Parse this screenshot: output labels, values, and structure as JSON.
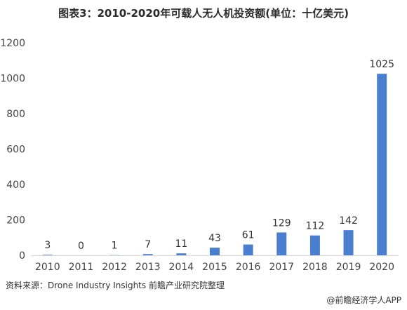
{
  "title": "图表3：2010-2020年可载人无人机投资额(单位：十亿美元)",
  "source_note": "资料来源：Drone Industry Insights 前瞻产业研究院整理",
  "footer_brand": "@前瞻经济学人APP",
  "colors": {
    "bar": "#4a7fd0",
    "axis_text": "#444444",
    "gridline": "#d9d9d9"
  },
  "chart_data": {
    "type": "bar",
    "title": "图表3：2010-2020年可载人无人机投资额(单位：十亿美元)",
    "categories": [
      "2010",
      "2011",
      "2012",
      "2013",
      "2014",
      "2015",
      "2016",
      "2017",
      "2018",
      "2019",
      "2020"
    ],
    "values": [
      3,
      0,
      1,
      7,
      11,
      43,
      61,
      129,
      112,
      142,
      1025
    ],
    "data_labels": [
      "3",
      "0",
      "1",
      "7",
      "11",
      "43",
      "61",
      "129",
      "112",
      "142",
      "1025"
    ],
    "ylim": [
      0,
      1200
    ],
    "yticks": [
      0,
      200,
      400,
      600,
      800,
      1000,
      1200
    ],
    "xlabel": "",
    "ylabel": "",
    "grid": false,
    "legend": "none"
  }
}
